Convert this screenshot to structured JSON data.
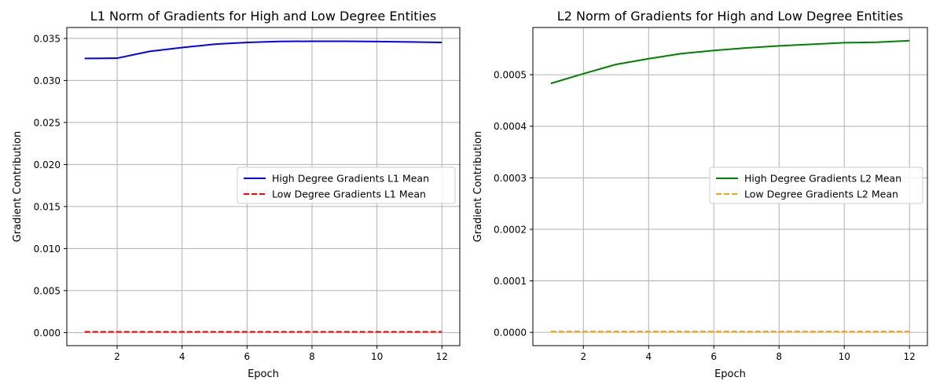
{
  "chart_data": [
    {
      "type": "line",
      "title": "L1 Norm of Gradients for High and Low Degree Entities",
      "xlabel": "Epoch",
      "ylabel": "Gradient Contribution",
      "xlim": [
        0.45,
        12.55
      ],
      "ylim": [
        -0.00155,
        0.0363
      ],
      "xticks": [
        2,
        4,
        6,
        8,
        10,
        12
      ],
      "xtick_labels": [
        "2",
        "4",
        "6",
        "8",
        "10",
        "12"
      ],
      "yticks": [
        0,
        0.005,
        0.01,
        0.015,
        0.02,
        0.025,
        0.03,
        0.035
      ],
      "ytick_labels": [
        "0.000",
        "0.005",
        "0.010",
        "0.015",
        "0.020",
        "0.025",
        "0.030",
        "0.035"
      ],
      "grid": true,
      "legend_position": "center-right",
      "x": [
        1,
        2,
        3,
        4,
        5,
        6,
        7,
        8,
        9,
        10,
        11,
        12
      ],
      "series": [
        {
          "name": "High Degree Gradients L1 Mean",
          "color": "#0000ff",
          "style": "solid",
          "values": [
            0.03262,
            0.03265,
            0.03346,
            0.03392,
            0.03431,
            0.03452,
            0.03464,
            0.03467,
            0.03466,
            0.03463,
            0.03458,
            0.03453
          ]
        },
        {
          "name": "Low Degree Gradients L1 Mean",
          "color": "#ff0000",
          "style": "dashed",
          "values": [
            0.0001,
            0.0001,
            0.0001,
            0.0001,
            0.0001,
            0.0001,
            0.0001,
            0.0001,
            0.0001,
            0.0001,
            0.0001,
            0.0001
          ]
        }
      ]
    },
    {
      "type": "line",
      "title": "L2 Norm of Gradients for High and Low Degree Entities",
      "xlabel": "Epoch",
      "ylabel": "Gradient Contribution",
      "xlim": [
        0.45,
        12.55
      ],
      "ylim": [
        -2.57e-05,
        0.0005916
      ],
      "xticks": [
        2,
        4,
        6,
        8,
        10,
        12
      ],
      "xtick_labels": [
        "2",
        "4",
        "6",
        "8",
        "10",
        "12"
      ],
      "yticks": [
        0,
        0.0001,
        0.0002,
        0.0003,
        0.0004,
        0.0005
      ],
      "ytick_labels": [
        "0.0000",
        "0.0001",
        "0.0002",
        "0.0003",
        "0.0004",
        "0.0005"
      ],
      "grid": true,
      "legend_position": "center-right",
      "x": [
        1,
        2,
        3,
        4,
        5,
        6,
        7,
        8,
        9,
        10,
        11,
        12
      ],
      "series": [
        {
          "name": "High Degree Gradients L2 Mean",
          "color": "#008000",
          "style": "solid",
          "values": [
            0.000483,
            0.000502,
            0.00052,
            0.000531,
            0.000541,
            0.000547,
            0.000552,
            0.000556,
            0.000559,
            0.000562,
            0.000563,
            0.000566
          ]
        },
        {
          "name": "Low Degree Gradients L2 Mean",
          "color": "#ffa500",
          "style": "dashed",
          "values": [
            2e-06,
            2e-06,
            2e-06,
            2e-06,
            2e-06,
            2e-06,
            2e-06,
            2e-06,
            2e-06,
            2e-06,
            2e-06,
            2e-06
          ]
        }
      ]
    }
  ]
}
